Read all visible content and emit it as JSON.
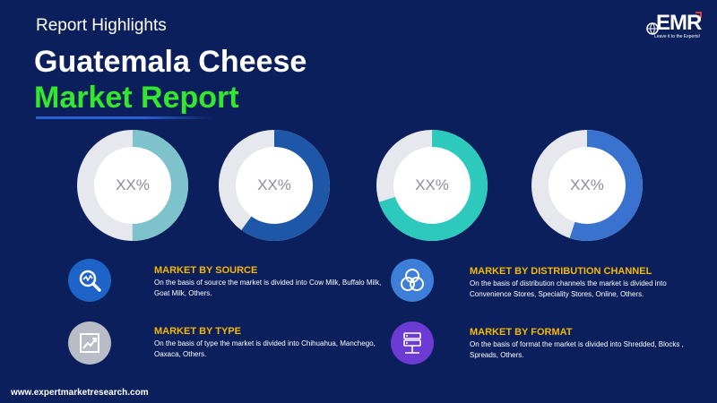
{
  "header": {
    "highlights": "Report Highlights",
    "title_line1": "Guatemala Cheese",
    "title_line2": "Market Report"
  },
  "logo": {
    "name": "EMR",
    "tagline": "Leave it to the Experts!"
  },
  "donuts": [
    {
      "label": "XX%",
      "fraction": 0.5,
      "color": "#7ec3cc"
    },
    {
      "label": "XX%",
      "fraction": 0.6,
      "color": "#1e56a8"
    },
    {
      "label": "XX%",
      "fraction": 0.7,
      "color": "#2ec9bd"
    },
    {
      "label": "XX%",
      "fraction": 0.55,
      "color": "#3a72d0"
    }
  ],
  "segments": {
    "source": {
      "title": "MARKET BY SOURCE",
      "description": "On the basis of source the market is divided into Cow Milk, Buffalo Milk, Goat Milk, Others.",
      "icon": "magnifier-chart-icon"
    },
    "distribution": {
      "title": "MARKET BY DISTRIBUTION CHANNEL",
      "description": "On the basis of distribution channels the market is divided into Convenience Stores, Speciality Stores, Online, Others.",
      "icon": "venn-icon"
    },
    "type": {
      "title": "MARKET  BY TYPE",
      "description": "On the basis of type the market is divided into Chihuahua, Manchego, Oaxaca, Others.",
      "icon": "trend-chart-icon"
    },
    "format": {
      "title": "MARKET BY FORMAT",
      "description": "On the basis of format the market is divided into Shredded, Blocks , Spreads, Others.",
      "icon": "server-icon"
    }
  },
  "footer": {
    "url": "www.expertmarketresearch.com"
  }
}
